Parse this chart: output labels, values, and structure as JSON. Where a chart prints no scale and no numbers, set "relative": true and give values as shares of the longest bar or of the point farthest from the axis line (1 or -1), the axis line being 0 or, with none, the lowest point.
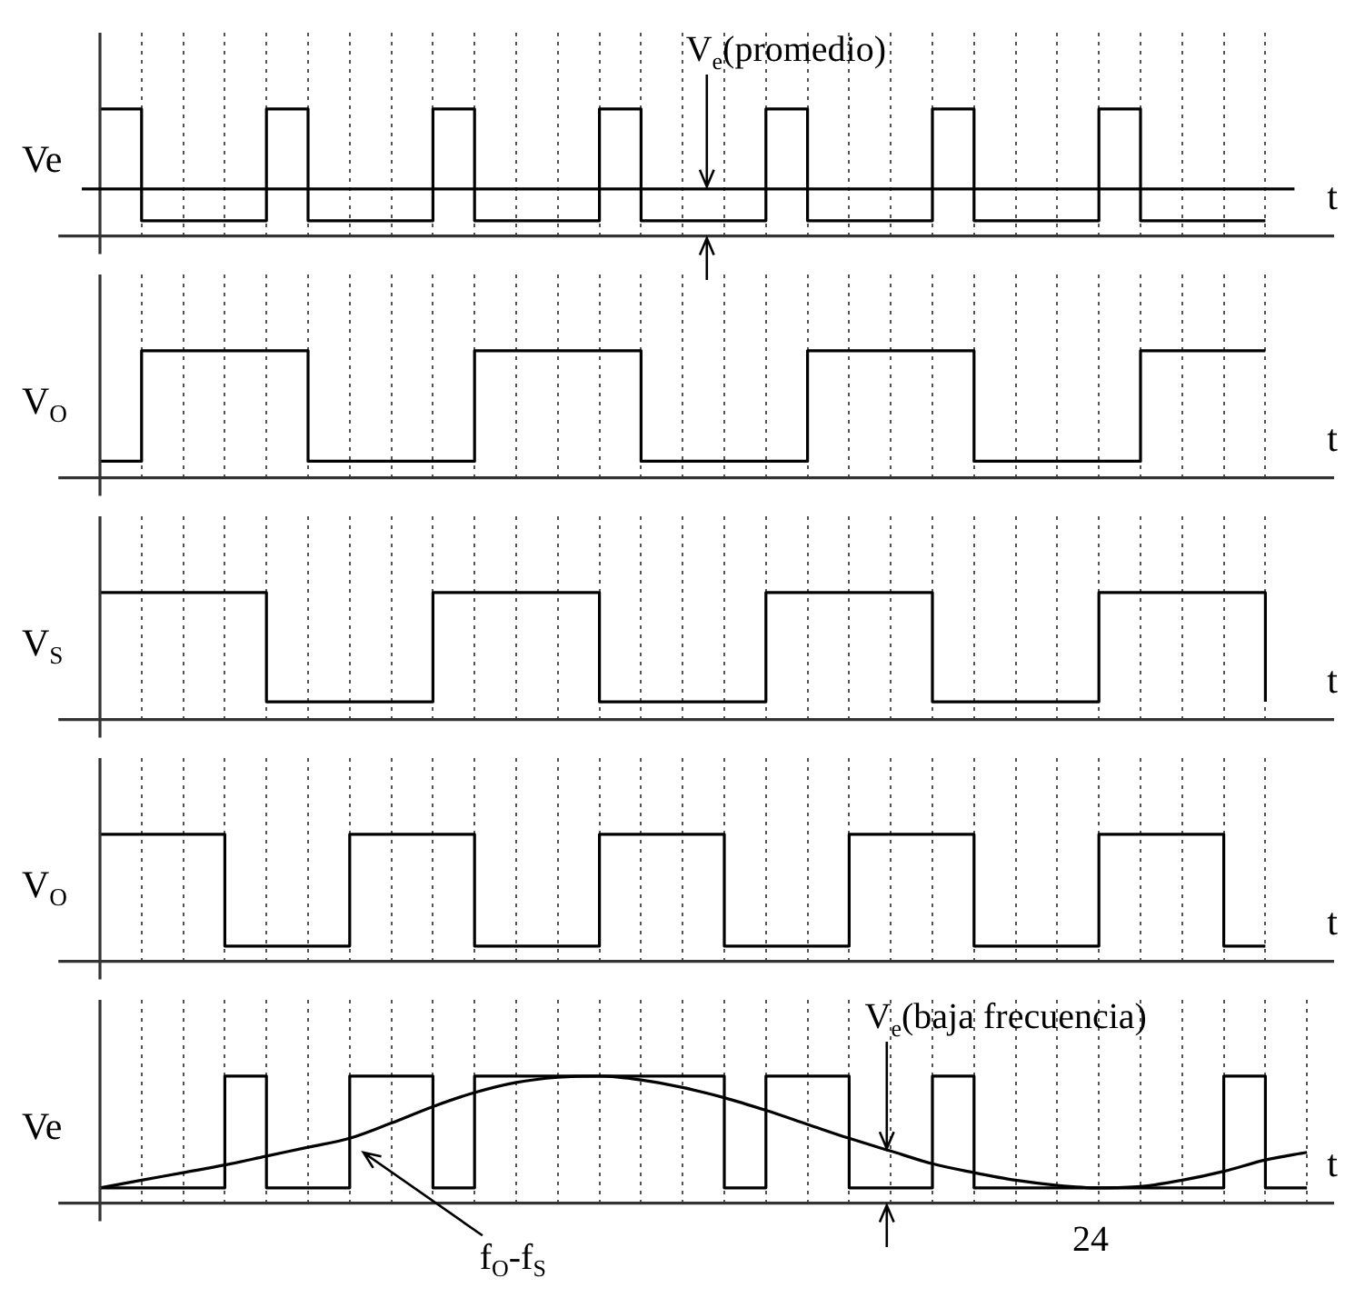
{
  "chart_data": [
    {
      "type": "step",
      "ylabel": "Ve",
      "xlabel": "t",
      "relative": true,
      "grid": "x",
      "marker": "none",
      "categories": [
        null,
        null,
        null,
        null,
        null,
        null,
        null,
        null,
        null,
        null,
        null,
        null,
        null,
        null,
        null,
        null,
        null,
        null,
        null,
        null,
        null,
        null,
        null,
        null,
        null,
        null,
        null,
        null,
        null
      ],
      "series": [
        {
          "color": "#000000",
          "values": [
            1,
            0.12,
            0.12,
            0.12,
            1,
            0.12,
            0.12,
            0.12,
            1,
            0.12,
            0.12,
            0.12,
            1,
            0.12,
            0.12,
            0.12,
            1,
            0.12,
            0.12,
            0.12,
            1,
            0.12,
            0.12,
            0.12,
            1,
            0.12,
            0.12,
            0.12,
            0.12
          ]
        }
      ],
      "ref_lines": [
        {
          "axis": "y",
          "value": 0.37
        }
      ],
      "annotations": [
        "V$_{e}$(promedio)"
      ]
    },
    {
      "type": "step",
      "ylabel": "V$_{O}$",
      "xlabel": "t",
      "relative": true,
      "grid": "x",
      "marker": "none",
      "categories": [
        null,
        null,
        null,
        null,
        null,
        null,
        null,
        null,
        null,
        null,
        null,
        null,
        null,
        null,
        null,
        null,
        null,
        null,
        null,
        null,
        null,
        null,
        null,
        null,
        null,
        null,
        null,
        null,
        null
      ],
      "series": [
        {
          "color": "#000000",
          "values": [
            0.13,
            1,
            1,
            1,
            1,
            0.13,
            0.13,
            0.13,
            0.13,
            1,
            1,
            1,
            1,
            0.13,
            0.13,
            0.13,
            0.13,
            1,
            1,
            1,
            1,
            0.13,
            0.13,
            0.13,
            0.13,
            1,
            1,
            1,
            1
          ]
        }
      ]
    },
    {
      "type": "step",
      "ylabel": "V$_{S}$",
      "xlabel": "t",
      "relative": true,
      "grid": "x",
      "marker": "none",
      "categories": [
        null,
        null,
        null,
        null,
        null,
        null,
        null,
        null,
        null,
        null,
        null,
        null,
        null,
        null,
        null,
        null,
        null,
        null,
        null,
        null,
        null,
        null,
        null,
        null,
        null,
        null,
        null,
        null,
        null
      ],
      "series": [
        {
          "color": "#000000",
          "values": [
            1,
            1,
            1,
            1,
            0.14,
            0.14,
            0.14,
            0.14,
            1,
            1,
            1,
            1,
            0.14,
            0.14,
            0.14,
            0.14,
            1,
            1,
            1,
            1,
            0.14,
            0.14,
            0.14,
            0.14,
            1,
            1,
            1,
            1,
            0.14
          ]
        }
      ]
    },
    {
      "type": "step",
      "ylabel": "V$_{O}$",
      "xlabel": "t",
      "relative": true,
      "grid": "x",
      "marker": "none",
      "categories": [
        null,
        null,
        null,
        null,
        null,
        null,
        null,
        null,
        null,
        null,
        null,
        null,
        null,
        null,
        null,
        null,
        null,
        null,
        null,
        null,
        null,
        null,
        null,
        null,
        null,
        null,
        null,
        null,
        null
      ],
      "series": [
        {
          "color": "#000000",
          "values": [
            1,
            1,
            1,
            0.12,
            0.12,
            0.12,
            1,
            1,
            1,
            0.12,
            0.12,
            0.12,
            1,
            1,
            1,
            0.12,
            0.12,
            0.12,
            1,
            1,
            1,
            0.12,
            0.12,
            0.12,
            1,
            1,
            1,
            0.12,
            0.12
          ]
        }
      ]
    },
    {
      "type": "step",
      "ylabel": "Ve",
      "xlabel": "t",
      "relative": true,
      "grid": "x",
      "marker": "none",
      "categories": [
        null,
        null,
        null,
        null,
        null,
        null,
        null,
        null,
        null,
        null,
        null,
        null,
        null,
        null,
        null,
        null,
        null,
        null,
        null,
        null,
        null,
        null,
        null,
        null,
        null,
        null,
        null,
        null,
        null,
        null
      ],
      "series": [
        {
          "color": "#000000",
          "values": [
            0.12,
            0.12,
            0.12,
            1,
            0.12,
            0.12,
            1,
            1,
            0.12,
            1,
            1,
            1,
            1,
            1,
            1,
            0.12,
            1,
            1,
            0.12,
            0.12,
            1,
            0.12,
            0.12,
            0.12,
            0.12,
            0.12,
            0.12,
            1,
            0.12,
            0.12
          ]
        },
        {
          "type": "line",
          "color": "#000000",
          "values": [
            0.12,
            0.18,
            0.24,
            0.3,
            0.37,
            0.44,
            0.51,
            0.63,
            0.76,
            0.87,
            0.95,
            0.99,
            1,
            0.97,
            0.91,
            0.83,
            0.73,
            0.62,
            0.51,
            0.41,
            0.31,
            0.24,
            0.18,
            0.14,
            0.12,
            0.13,
            0.18,
            0.25,
            0.34,
            0.4
          ]
        }
      ],
      "annotations": [
        "V$_{e}$(baja frecuencia)",
        "f$_{O}$-f$_{S}$",
        "24"
      ]
    }
  ]
}
